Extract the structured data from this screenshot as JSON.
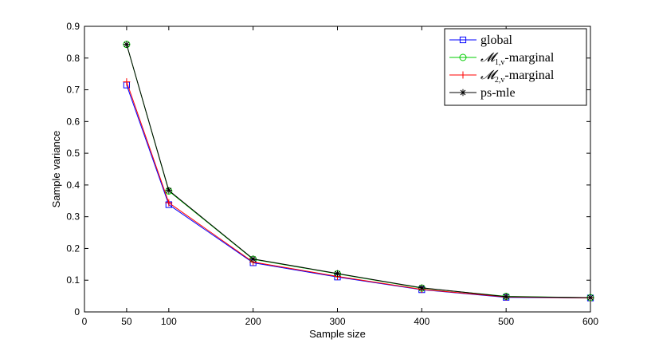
{
  "chart_data": {
    "type": "line",
    "title": "",
    "xlabel": "Sample size",
    "ylabel": "Sample variance",
    "xlim": [
      0,
      600
    ],
    "ylim": [
      0,
      0.9
    ],
    "xticks": [
      0,
      50,
      100,
      200,
      300,
      400,
      500,
      600
    ],
    "xtick_labels": [
      "0",
      "50",
      "100",
      "200",
      "300",
      "400",
      "500",
      "600"
    ],
    "yticks": [
      0,
      0.1,
      0.2,
      0.3,
      0.4,
      0.5,
      0.6,
      0.7,
      0.8,
      0.9
    ],
    "ytick_labels": [
      "0",
      "0.1",
      "0.2",
      "0.3",
      "0.4",
      "0.5",
      "0.6",
      "0.7",
      "0.8",
      "0.9"
    ],
    "x": [
      50,
      100,
      200,
      300,
      400,
      500,
      600
    ],
    "grid": false,
    "legend_position": "top-right",
    "series": [
      {
        "name": "global",
        "legend_main": "global",
        "legend_sub": "",
        "legend_suffix": "",
        "color": "#0000ff",
        "marker": "square",
        "values": [
          0.715,
          0.338,
          0.155,
          0.11,
          0.07,
          0.046,
          0.044
        ]
      },
      {
        "name": "𝓜1,v-marginal",
        "legend_main": "𝓜",
        "legend_sub": "1,v",
        "legend_suffix": "-marginal",
        "color": "#00cc00",
        "marker": "circle",
        "values": [
          0.843,
          0.381,
          0.166,
          0.12,
          0.075,
          0.049,
          0.045
        ]
      },
      {
        "name": "𝓜2,v-marginal",
        "legend_main": "𝓜",
        "legend_sub": "2,v",
        "legend_suffix": "-marginal",
        "color": "#ff0000",
        "marker": "plus",
        "values": [
          0.725,
          0.344,
          0.157,
          0.112,
          0.071,
          0.047,
          0.044
        ]
      },
      {
        "name": "ps-mle",
        "legend_main": "ps-mle",
        "legend_sub": "",
        "legend_suffix": "",
        "color": "#000000",
        "marker": "asterisk",
        "values": [
          0.843,
          0.383,
          0.167,
          0.121,
          0.076,
          0.048,
          0.045
        ]
      }
    ]
  }
}
